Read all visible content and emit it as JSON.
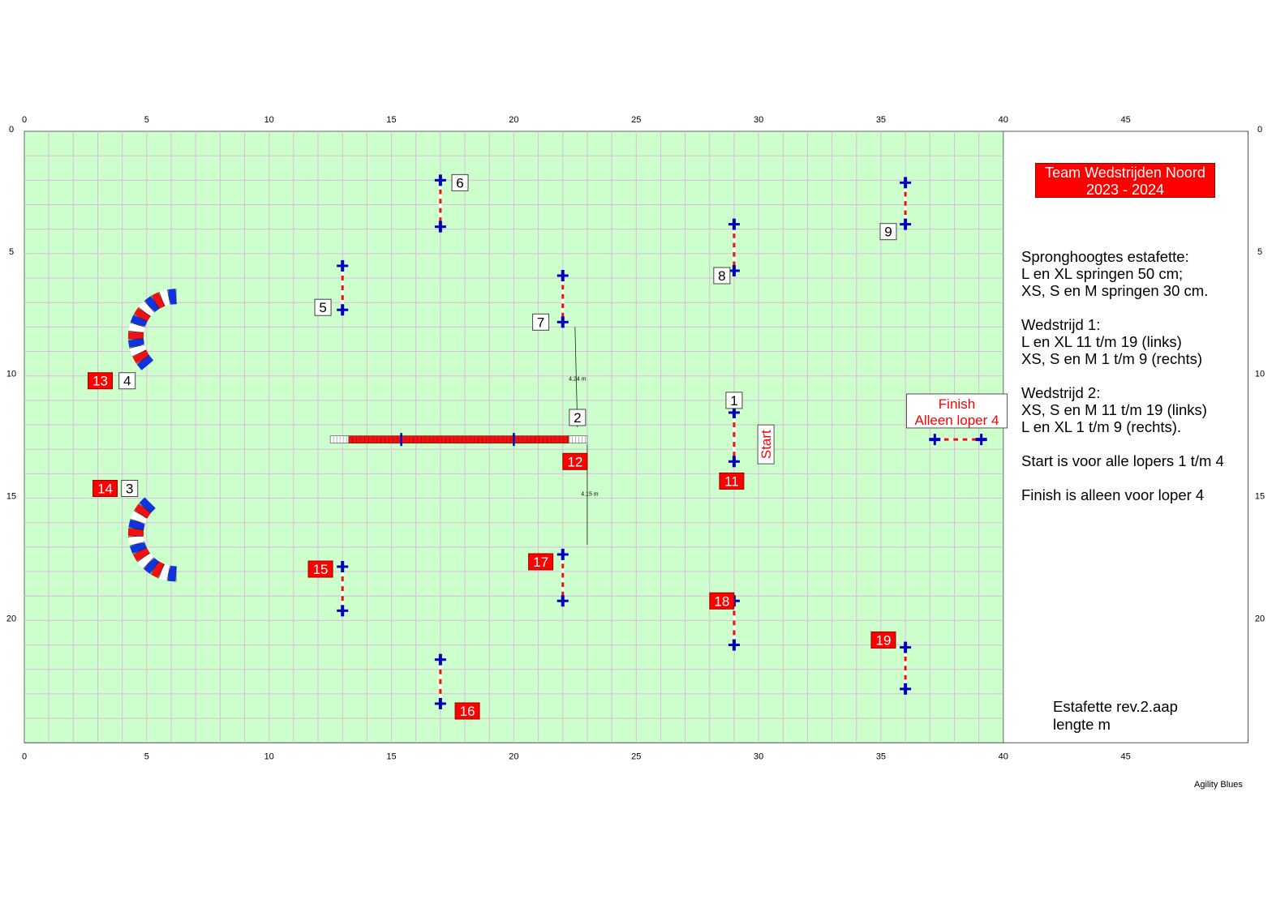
{
  "course": {
    "title_line1": "Team Wedstrijden Noord",
    "title_line2": "2023 - 2024",
    "notes": [
      "Spronghoogtes estafette:",
      "L en XL springen 50 cm;",
      "XS, S en M springen 30 cm.",
      "",
      "Wedstrijd 1:",
      "L en XL 11 t/m 19 (links)",
      "XS, S en M 1 t/m 9 (rechts)",
      "",
      "Wedstrijd 2:",
      "XS, S en M 11 t/m 19 (links)",
      "L en XL 1 t/m 9 (rechts).",
      "",
      "Start is voor alle lopers 1 t/m 4",
      "",
      "Finish is alleen voor loper 4"
    ],
    "footer_line1": "Estafette rev.2.aap",
    "footer_line2": "lengte  m",
    "credit": "Agility Blues"
  },
  "field": {
    "width_m": 40,
    "height_m": 25,
    "sheet_width_m": 50,
    "grid_step_m": 1,
    "axis_x_ticks": [
      "0",
      "5",
      "10",
      "15",
      "20",
      "25",
      "30",
      "35",
      "40",
      "45"
    ],
    "axis_y_ticks": [
      "0",
      "5",
      "10",
      "15",
      "20"
    ],
    "colors": {
      "grass": "#ccffcc",
      "grid": "#dcbcdc",
      "pole": "#0000bb",
      "bar_red": "#ee1111",
      "label_red": "#ff0000"
    }
  },
  "jumps": [
    {
      "id": "j1",
      "x": 29.0,
      "y1": 11.5,
      "y2": 13.5
    },
    {
      "id": "j5",
      "x": 13.0,
      "y1": 5.5,
      "y2": 7.3
    },
    {
      "id": "j6",
      "x": 17.0,
      "y1": 2.0,
      "y2": 3.9
    },
    {
      "id": "j7",
      "x": 22.0,
      "y1": 5.9,
      "y2": 7.8
    },
    {
      "id": "j8",
      "x": 29.0,
      "y1": 3.8,
      "y2": 5.7
    },
    {
      "id": "j9",
      "x": 36.0,
      "y1": 2.1,
      "y2": 3.8
    },
    {
      "id": "j15",
      "x": 13.0,
      "y1": 17.8,
      "y2": 19.6
    },
    {
      "id": "j16",
      "x": 17.0,
      "y1": 21.6,
      "y2": 23.4
    },
    {
      "id": "j17",
      "x": 22.0,
      "y1": 17.3,
      "y2": 19.2
    },
    {
      "id": "j18",
      "x": 29.0,
      "y1": 19.2,
      "y2": 21.0
    },
    {
      "id": "j19",
      "x": 36.0,
      "y1": 21.1,
      "y2": 22.8
    }
  ],
  "finish_jump": {
    "x1": 37.2,
    "x2": 39.1,
    "y": 12.6
  },
  "walk": {
    "x1": 12.5,
    "x2": 23.0,
    "y": 12.6,
    "ramp_m": 0.75
  },
  "tunnels": [
    {
      "id": "tunnel-4-13",
      "cx": 6.2,
      "cy": 8.4,
      "r": 1.65,
      "start_deg": -90,
      "end_deg": -225
    },
    {
      "id": "tunnel-3-14",
      "cx": 6.2,
      "cy": 16.45,
      "r": 1.65,
      "start_deg": 90,
      "end_deg": 230
    }
  ],
  "measurements": [
    {
      "label": "4.24 m",
      "x1": 22.5,
      "y1": 8.0,
      "x2": 22.6,
      "y2": 12.1,
      "lx": 22.6,
      "ly": 10.2
    },
    {
      "label": "4.15 m",
      "x1": 23.0,
      "y1": 12.8,
      "x2": 23.0,
      "y2": 16.9,
      "lx": 23.1,
      "ly": 14.9
    }
  ],
  "numbers": [
    {
      "text": "1",
      "style": "white",
      "x": 29.0,
      "y": 11.0
    },
    {
      "text": "2",
      "style": "white",
      "x": 22.6,
      "y": 11.7
    },
    {
      "text": "3",
      "style": "white",
      "x": 4.3,
      "y": 14.6
    },
    {
      "text": "4",
      "style": "white",
      "x": 4.2,
      "y": 10.2
    },
    {
      "text": "5",
      "style": "white",
      "x": 12.2,
      "y": 7.2
    },
    {
      "text": "6",
      "style": "white",
      "x": 17.8,
      "y": 2.1
    },
    {
      "text": "7",
      "style": "white",
      "x": 21.1,
      "y": 7.8
    },
    {
      "text": "8",
      "style": "white",
      "x": 28.5,
      "y": 5.9
    },
    {
      "text": "9",
      "style": "white",
      "x": 35.3,
      "y": 4.1
    },
    {
      "text": "11",
      "style": "red",
      "x": 28.9,
      "y": 14.3
    },
    {
      "text": "12",
      "style": "red",
      "x": 22.5,
      "y": 13.5
    },
    {
      "text": "13",
      "style": "red",
      "x": 3.1,
      "y": 10.2
    },
    {
      "text": "14",
      "style": "red",
      "x": 3.3,
      "y": 14.6
    },
    {
      "text": "15",
      "style": "red",
      "x": 12.1,
      "y": 17.9
    },
    {
      "text": "16",
      "style": "red",
      "x": 18.1,
      "y": 23.7
    },
    {
      "text": "17",
      "style": "red",
      "x": 21.1,
      "y": 17.6
    },
    {
      "text": "18",
      "style": "red",
      "x": 28.5,
      "y": 19.2
    },
    {
      "text": "19",
      "style": "red",
      "x": 35.1,
      "y": 20.8
    }
  ],
  "start_label": {
    "text": "Start",
    "x": 30.3,
    "y": 12.8
  },
  "finish_label": {
    "line1": "Finish",
    "line2": "Alleen loper 4",
    "x": 38.1,
    "y": 11.4
  }
}
